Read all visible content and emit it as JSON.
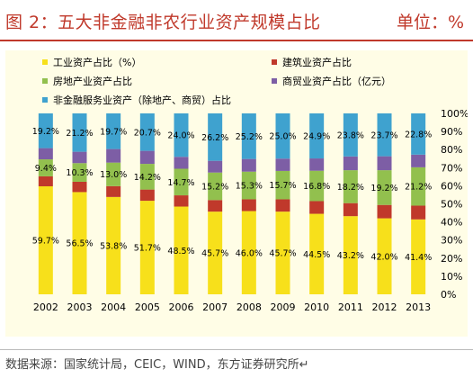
{
  "header": {
    "title": "图 2：五大非金融非农行业资产规模占比",
    "unit": "单位：%"
  },
  "footer": {
    "source": "数据来源：国家统计局，CEIC，WIND，东方证券研究所↵"
  },
  "chart_data": {
    "type": "bar",
    "stacked": true,
    "categories": [
      "2002",
      "2003",
      "2004",
      "2005",
      "2006",
      "2007",
      "2008",
      "2009",
      "2010",
      "2011",
      "2012",
      "2013"
    ],
    "ylim": [
      0,
      100
    ],
    "yticks": [
      "0%",
      "10%",
      "20%",
      "30%",
      "40%",
      "50%",
      "60%",
      "70%",
      "80%",
      "90%",
      "100%"
    ],
    "legend": "top",
    "series": [
      {
        "name": "工业资产占比（%）",
        "color": "#f7e01b",
        "values": [
          59.7,
          56.5,
          53.8,
          51.7,
          48.5,
          45.7,
          46.0,
          45.7,
          44.5,
          43.2,
          42.0,
          41.4
        ],
        "labels": [
          "59.7%",
          "56.5%",
          "53.8%",
          "51.7%",
          "48.5%",
          "45.7%",
          "46.0%",
          "45.7%",
          "44.5%",
          "43.2%",
          "42.0%",
          "41.4%"
        ]
      },
      {
        "name": "建筑业资产占比",
        "color": "#c0392b",
        "values": [
          5.5,
          5.7,
          6.0,
          6.2,
          6.2,
          6.4,
          6.5,
          6.8,
          7.0,
          7.2,
          7.4,
          7.6
        ]
      },
      {
        "name": "房地产业资产占比",
        "color": "#92c04e",
        "values": [
          9.4,
          10.3,
          13.0,
          14.2,
          14.7,
          15.2,
          15.3,
          15.7,
          16.8,
          18.2,
          19.2,
          21.2
        ],
        "labels": [
          "9.4%",
          "10.3%",
          "13.0%",
          "14.2%",
          "14.7%",
          "15.2%",
          "15.3%",
          "15.7%",
          "16.8%",
          "18.2%",
          "19.2%",
          "21.2%"
        ]
      },
      {
        "name": "商贸业资产占比（亿元）",
        "color": "#7d5ea5",
        "values": [
          6.2,
          6.3,
          7.5,
          7.2,
          6.6,
          6.5,
          7.0,
          6.8,
          6.8,
          7.6,
          7.7,
          7.0
        ]
      },
      {
        "name": "非金融服务业资产（除地产、商贸）占比",
        "color": "#3fa2cf",
        "values": [
          19.2,
          21.2,
          19.7,
          20.7,
          24.0,
          26.2,
          25.2,
          25.0,
          24.9,
          23.8,
          23.7,
          22.8
        ],
        "labels": [
          "19.2%",
          "21.2%",
          "19.7%",
          "20.7%",
          "24.0%",
          "26.2%",
          "25.2%",
          "25.0%",
          "24.9%",
          "23.8%",
          "23.7%",
          "22.8%"
        ]
      }
    ]
  }
}
